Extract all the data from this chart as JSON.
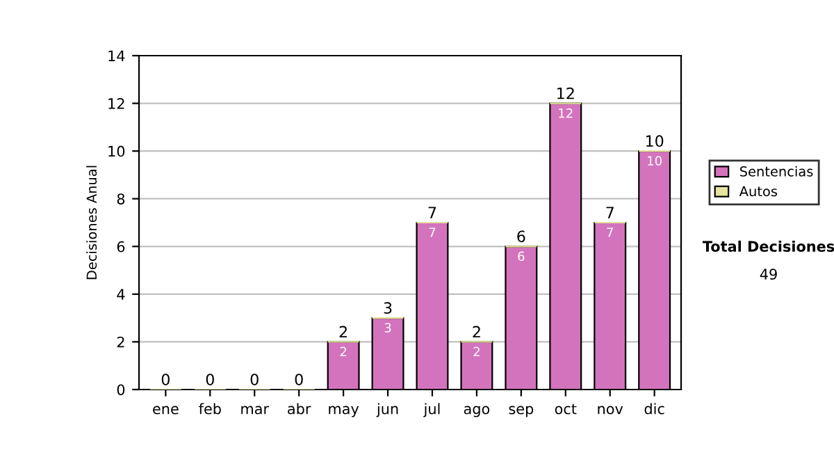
{
  "chart_data": {
    "type": "bar",
    "ylabel": "Decisiones Anual",
    "categories": [
      "ene",
      "feb",
      "mar",
      "abr",
      "may",
      "jun",
      "jul",
      "ago",
      "sep",
      "oct",
      "nov",
      "dic"
    ],
    "series": [
      {
        "name": "Sentencias",
        "color": "#d473bd",
        "values": [
          0,
          0,
          0,
          0,
          2,
          3,
          7,
          2,
          6,
          12,
          7,
          10
        ],
        "value_labels": [
          null,
          null,
          null,
          null,
          "2",
          "3",
          "7",
          "2",
          "6",
          "12",
          "7",
          "10"
        ]
      },
      {
        "name": "Autos",
        "color": "#e4e49c",
        "values": [
          0,
          0,
          0,
          0,
          0,
          0,
          0,
          0,
          0,
          0,
          0,
          0
        ]
      }
    ],
    "stacked": true,
    "totals": [
      "0",
      "0",
      "0",
      "0",
      "2",
      "3",
      "7",
      "2",
      "6",
      "12",
      "7",
      "10"
    ],
    "ylim": [
      0,
      14
    ],
    "yticks": [
      0,
      2,
      4,
      6,
      8,
      10,
      12,
      14
    ],
    "grid": "y",
    "legend": "right",
    "annotations": [
      "Total Decisiones",
      "49"
    ]
  }
}
